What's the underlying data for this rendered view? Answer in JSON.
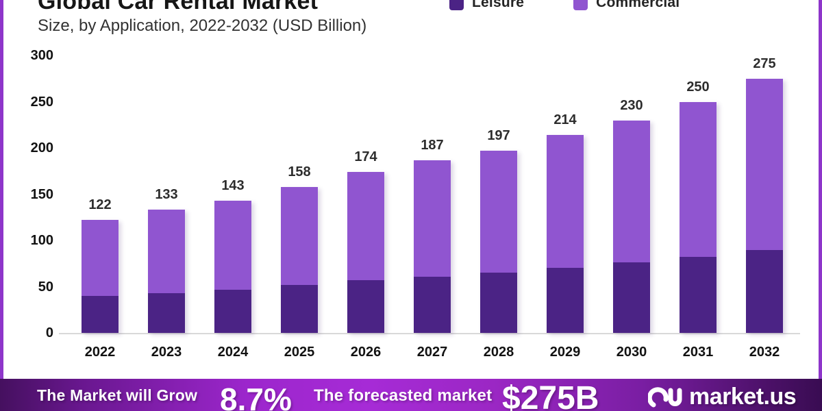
{
  "header": {
    "title": "Global Car Rental Market",
    "subtitle": "Size, by Application, 2022-2032 (USD Billion)"
  },
  "legend": [
    {
      "label": "Leisure",
      "color": "#4b2385"
    },
    {
      "label": "Commercial",
      "color": "#9055d0"
    }
  ],
  "chart_data": {
    "type": "bar",
    "stacked": true,
    "title": "Global Car Rental Market",
    "subtitle": "Size, by Application, 2022-2032 (USD Billion)",
    "unit": "USD Billion",
    "categories": [
      "2022",
      "2023",
      "2024",
      "2025",
      "2026",
      "2027",
      "2028",
      "2029",
      "2030",
      "2031",
      "2032"
    ],
    "series": [
      {
        "name": "Leisure",
        "color": "#4b2385",
        "values": [
          40,
          43,
          47,
          52,
          57,
          61,
          65,
          70,
          76,
          82,
          90
        ]
      },
      {
        "name": "Commercial",
        "color": "#9055d0",
        "values": [
          82,
          90,
          96,
          106,
          117,
          126,
          132,
          144,
          154,
          168,
          185
        ]
      }
    ],
    "totals": [
      122,
      133,
      143,
      158,
      174,
      187,
      197,
      214,
      230,
      250,
      275
    ],
    "ylim": [
      0,
      300
    ],
    "yticks": [
      0,
      50,
      100,
      150,
      200,
      250,
      300
    ],
    "grid": false,
    "legend_position": "top-right"
  },
  "banner": {
    "grow_label": "The Market will Grow",
    "growth_value": "8.7%",
    "forecast_label": "The forecasted market",
    "forecast_value": "$275B",
    "brand": "market.us"
  },
  "colors": {
    "leisure": "#4b2385",
    "commercial": "#9055d0",
    "side_border": "#8e35ca",
    "banner_start": "#45105f",
    "banner_mid": "#a62bd6",
    "banner_end": "#390c52"
  }
}
